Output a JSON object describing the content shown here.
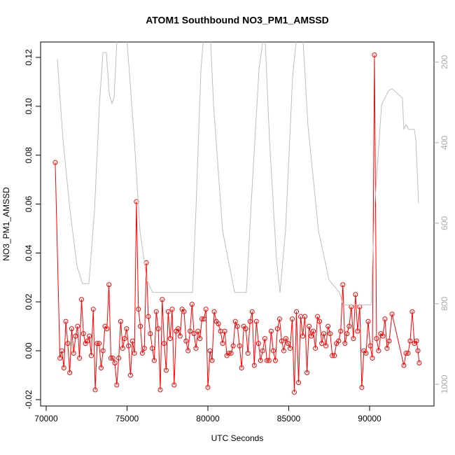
{
  "chart_data": {
    "type": "line",
    "title": "ATOM1 Southbound NO3_PM1_AMSSD",
    "xlabel": "UTC Seconds",
    "ylabel": "NO3_PM1_AMSSD",
    "xlim": [
      69654,
      93983
    ],
    "xticks": [
      70000,
      75000,
      80000,
      85000,
      90000
    ],
    "ylim": [
      -0.0226,
      0.1263
    ],
    "yticks": [
      -0.02,
      {
        "value": 0,
        "label": "0.00"
      },
      0.02,
      0.04,
      0.06,
      0.08,
      {
        "value": 0.1,
        "label": "0.10"
      },
      0.12
    ],
    "y2lim": [
      1054,
      150
    ],
    "y2ticks": [
      200,
      400,
      600,
      800,
      1000
    ],
    "series": [
      {
        "color": "#ff0000",
        "markers": true,
        "x": [
          70560,
          70850,
          70971,
          71093,
          71214,
          71335,
          71456,
          71578,
          71699,
          71820,
          71941,
          72063,
          72184,
          72305,
          72426,
          72548,
          72669,
          72790,
          72911,
          73033,
          73154,
          73275,
          73396,
          73518,
          73639,
          73760,
          73881,
          74003,
          74124,
          74245,
          74366,
          74488,
          74609,
          74730,
          74851,
          74973,
          75094,
          75215,
          75336,
          75458,
          75580,
          75703,
          75826,
          75948,
          76071,
          76194,
          76317,
          76440,
          76562,
          76685,
          76808,
          76931,
          77054,
          77177,
          77299,
          77422,
          77545,
          77668,
          77791,
          77913,
          78036,
          78159,
          78282,
          78405,
          78527,
          78650,
          78773,
          78896,
          79019,
          79142,
          79264,
          79387,
          79510,
          79633,
          79756,
          79878,
          80000,
          80130,
          80261,
          80391,
          80522,
          80652,
          80782,
          80913,
          81043,
          81174,
          81304,
          81434,
          81565,
          81695,
          81826,
          81956,
          82086,
          82217,
          82347,
          82478,
          82608,
          82738,
          82869,
          82999,
          83130,
          83260,
          83390,
          83521,
          83651,
          83782,
          83912,
          84042,
          84173,
          84303,
          84434,
          84564,
          84694,
          84825,
          84955,
          85086,
          85216,
          85346,
          85477,
          85607,
          85738,
          85868,
          85998,
          86129,
          86259,
          86390,
          86520,
          86650,
          86781,
          86911,
          87042,
          87172,
          87302,
          87433,
          87563,
          87694,
          87824,
          87954,
          88085,
          88215,
          88346,
          88476,
          88606,
          88737,
          88867,
          88998,
          89128,
          89258,
          89389,
          89519,
          89650,
          89780,
          89910,
          90041,
          90171,
          90300,
          90430,
          90560,
          90690,
          90820,
          90950,
          91080,
          91210,
          91390,
          92120,
          92250,
          92380,
          92510,
          92640,
          92770,
          92900,
          92990,
          93070
        ],
        "values": [
          0.077,
          -0.003,
          0.0,
          -0.007,
          0.012,
          0.003,
          -0.009,
          0.009,
          -0.001,
          0.006,
          0.01,
          -0.003,
          0.021,
          0.007,
          0.003,
          0.004,
          0.006,
          -0.002,
          0.017,
          -0.016,
          0.003,
          0.003,
          -0.007,
          0.0,
          0.01,
          0.009,
          0.027,
          -0.003,
          -0.003,
          -0.005,
          -0.014,
          -0.003,
          0.012,
          0.001,
          0.005,
          0.009,
          0.002,
          -0.01,
          0.004,
          -0.001,
          0.061,
          0.017,
          0.01,
          -0.001,
          0.001,
          0.036,
          0.014,
          0.007,
          0.001,
          -0.004,
          0.016,
          0.009,
          -0.016,
          0.021,
          0.003,
          -0.008,
          0.016,
          0.005,
          0.017,
          -0.014,
          0.008,
          0.009,
          0.006,
          0.017,
          0.016,
          0.004,
          0.0,
          0.008,
          0.019,
          0.007,
          0.001,
          0.008,
          0.005,
          0.013,
          0.013,
          0.017,
          -0.015,
          0.0,
          -0.004,
          0.016,
          0.012,
          0.011,
          0.008,
          0.003,
          0.008,
          -0.002,
          -0.001,
          -0.001,
          0.002,
          0.012,
          0.01,
          0.002,
          -0.007,
          0.01,
          0.009,
          -0.001,
          0.012,
          0.016,
          -0.006,
          0.012,
          0.003,
          -0.004,
          0.0,
          0.005,
          -0.004,
          -0.004,
          0.008,
          0.0,
          -0.004,
          0.009,
          0.013,
          0.004,
          0.0,
          0.005,
          0.003,
          0.001,
          0.013,
          -0.017,
          0.016,
          -0.013,
          0.014,
          0.006,
          0.014,
          -0.009,
          0.01,
          0.006,
          0.008,
          0.001,
          0.014,
          0.012,
          0.003,
          0.007,
          0.002,
          0.01,
          0.007,
          -0.002,
          -0.002,
          0.003,
          0.004,
          0.008,
          0.027,
          0.003,
          0.007,
          0.01,
          0.018,
          0.005,
          0.023,
          0.008,
          0.018,
          -0.015,
          0.0,
          -0.001,
          0.012,
          0.002,
          -0.003,
          0.121,
          0.005,
          0.0,
          0.007,
          0.006,
          0.013,
          0.001,
          0.004,
          0.015,
          -0.006,
          -0.001,
          -0.001,
          0.004,
          0.016,
          0.003,
          0.004,
          0.0,
          -0.005
        ]
      },
      {
        "color": "#bebebe",
        "axis": "y2",
        "markers": false,
        "x": [
          70690,
          71040,
          71470,
          71900,
          72250,
          72640,
          72990,
          73290,
          73510,
          73720,
          73900,
          74070,
          74200,
          74370,
          74940,
          75450,
          75800,
          76230,
          76580,
          78400,
          79050,
          79260,
          79570,
          79780,
          80130,
          80350,
          80910,
          81650,
          82380,
          82730,
          83160,
          83510,
          83810,
          84240,
          84460,
          84800,
          85240,
          85540,
          85840,
          86190,
          86840,
          87490,
          88140,
          88360,
          90090,
          90300,
          90740,
          91170,
          91390,
          92030,
          92120,
          92250,
          92420,
          92770,
          92860,
          93030
        ],
        "values": [
          193,
          393,
          567,
          706,
          750,
          750,
          567,
          306,
          176,
          176,
          280,
          303,
          289,
          150,
          115,
          393,
          619,
          741,
          772,
          772,
          772,
          567,
          219,
          115,
          115,
          306,
          619,
          772,
          772,
          515,
          219,
          115,
          393,
          689,
          772,
          619,
          236,
          115,
          115,
          358,
          619,
          741,
          772,
          803,
          803,
          567,
          306,
          271,
          266,
          289,
          367,
          355,
          367,
          367,
          393,
          550
        ]
      }
    ]
  }
}
